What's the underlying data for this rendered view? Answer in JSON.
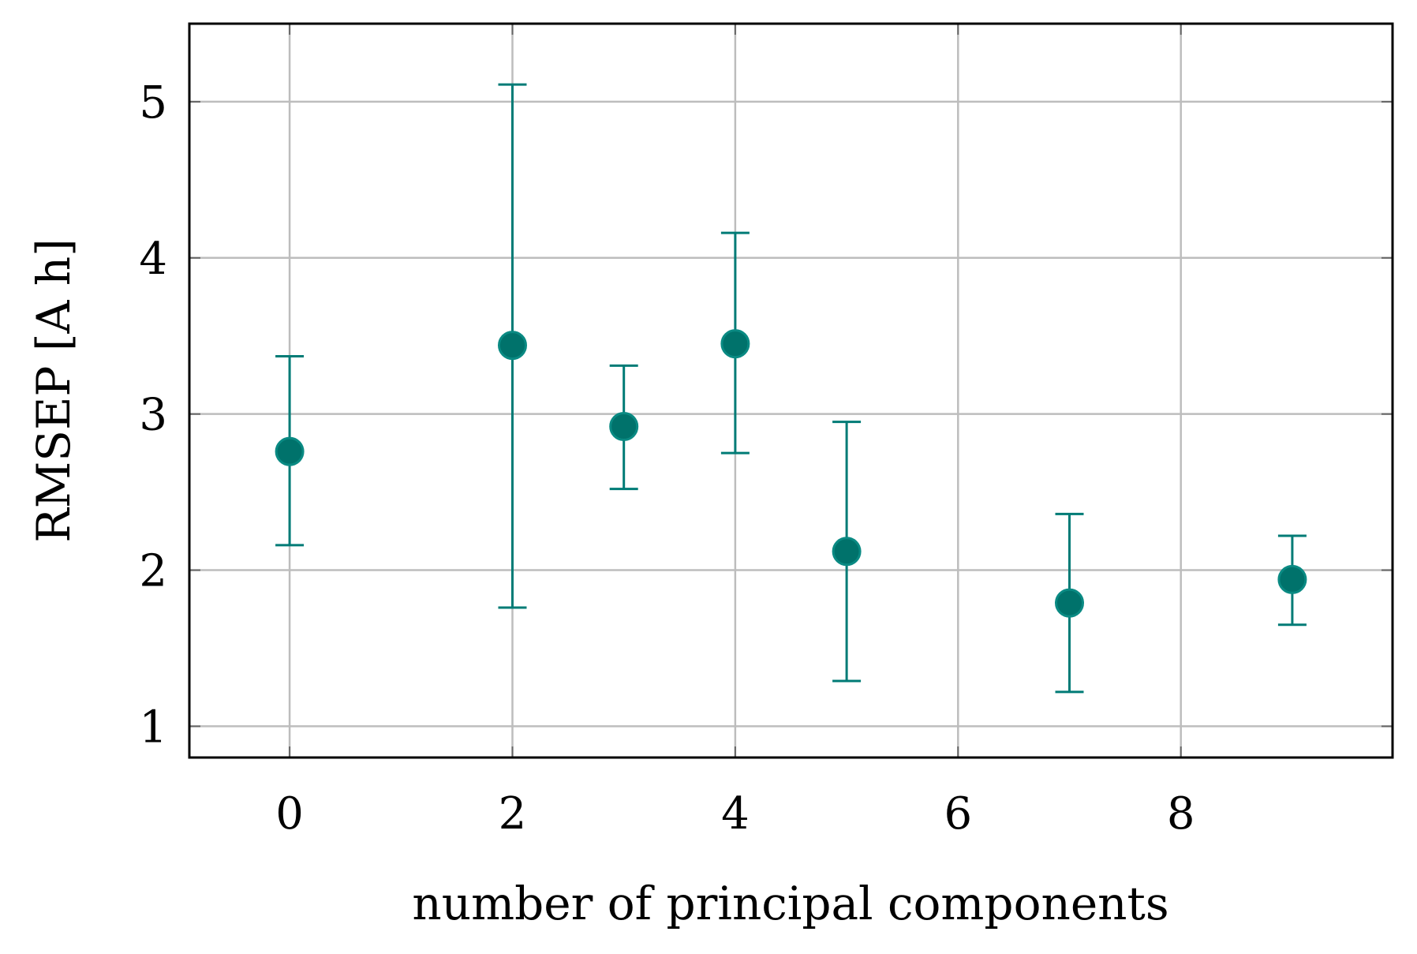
{
  "chart_data": {
    "type": "scatter",
    "xlabel": "number of principal components",
    "ylabel": "RMSEP [A h]",
    "xlim": [
      -0.9,
      9.9
    ],
    "ylim": [
      0.8,
      5.5
    ],
    "xticks": [
      0,
      2,
      4,
      6,
      8
    ],
    "yticks": [
      1,
      2,
      3,
      4,
      5
    ],
    "grid": true,
    "series": [
      {
        "x": [
          0,
          2,
          3,
          4,
          5,
          7,
          9
        ],
        "y": [
          2.76,
          3.44,
          2.92,
          3.45,
          2.12,
          1.79,
          1.94
        ],
        "err_low": [
          2.16,
          1.76,
          2.52,
          2.75,
          1.29,
          1.22,
          1.65
        ],
        "err_high": [
          3.37,
          5.11,
          3.31,
          4.16,
          2.95,
          2.36,
          2.22
        ]
      }
    ],
    "colors": {
      "marker": "#00726b",
      "errorbar": "#007b76",
      "grid": "#bdbdbd"
    }
  }
}
